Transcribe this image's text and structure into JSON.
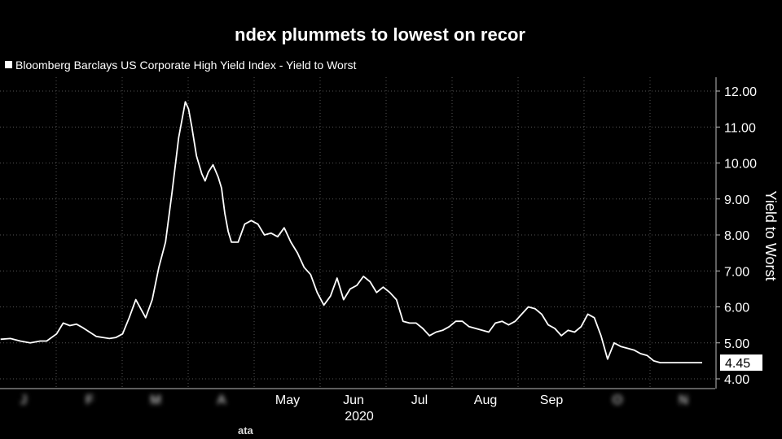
{
  "title": "ndex plummets to lowest on recor",
  "legend": "Bloomberg Barclays US Corporate High Yield Index - Yield to Worst",
  "source": "ata",
  "chart_data": {
    "type": "line",
    "title": "ndex plummets to lowest on recor",
    "xlabel": "2020",
    "ylabel": "Yield to Worst",
    "ylim": [
      4.0,
      12.0
    ],
    "y_ticks": [
      "4.00",
      "5.00",
      "6.00",
      "7.00",
      "8.00",
      "9.00",
      "10.00",
      "11.00",
      "12.00"
    ],
    "x_ticks": [
      {
        "month": 0,
        "label": "J"
      },
      {
        "month": 1,
        "label": "F"
      },
      {
        "month": 2,
        "label": "M"
      },
      {
        "month": 3,
        "label": "A"
      },
      {
        "month": 4,
        "label": "May"
      },
      {
        "month": 5,
        "label": "Jun"
      },
      {
        "month": 6,
        "label": "Jul"
      },
      {
        "month": 7,
        "label": "Aug"
      },
      {
        "month": 8,
        "label": "Sep"
      },
      {
        "month": 9,
        "label": "O"
      },
      {
        "month": 10,
        "label": "N"
      }
    ],
    "last_value_label": "4.45",
    "series": [
      {
        "name": "Bloomberg Barclays US Corporate High Yield Index - Yield to Worst",
        "color": "#ffffff",
        "x": [
          -0.35,
          -0.2,
          -0.05,
          0.1,
          0.25,
          0.35,
          0.5,
          0.6,
          0.7,
          0.8,
          0.9,
          1.0,
          1.1,
          1.2,
          1.3,
          1.4,
          1.5,
          1.6,
          1.7,
          1.85,
          1.95,
          2.05,
          2.15,
          2.25,
          2.35,
          2.45,
          2.5,
          2.55,
          2.62,
          2.7,
          2.75,
          2.8,
          2.87,
          2.95,
          3.0,
          3.05,
          3.1,
          3.15,
          3.25,
          3.35,
          3.45,
          3.55,
          3.65,
          3.75,
          3.85,
          3.95,
          4.05,
          4.15,
          4.25,
          4.35,
          4.45,
          4.55,
          4.65,
          4.75,
          4.85,
          4.95,
          5.05,
          5.15,
          5.25,
          5.35,
          5.45,
          5.55,
          5.65,
          5.75,
          5.85,
          5.95,
          6.05,
          6.15,
          6.25,
          6.35,
          6.45,
          6.55,
          6.65,
          6.75,
          6.85,
          6.95,
          7.05,
          7.15,
          7.25,
          7.35,
          7.45,
          7.55,
          7.65,
          7.75,
          7.85,
          7.95,
          8.05,
          8.15,
          8.25,
          8.35,
          8.45,
          8.55,
          8.65,
          8.75,
          8.85,
          8.95,
          9.05,
          9.15,
          9.25,
          9.35,
          9.45,
          9.55,
          9.65,
          9.75,
          9.85,
          9.95,
          10.05,
          10.15,
          10.25,
          10.35,
          10.45
        ],
        "values": [
          5.1,
          5.12,
          5.05,
          5.0,
          5.05,
          5.05,
          5.25,
          5.55,
          5.48,
          5.52,
          5.42,
          5.3,
          5.18,
          5.15,
          5.12,
          5.15,
          5.25,
          5.7,
          6.2,
          5.7,
          6.2,
          7.1,
          7.8,
          9.2,
          10.7,
          11.7,
          11.5,
          11.0,
          10.2,
          9.7,
          9.5,
          9.75,
          9.95,
          9.6,
          9.3,
          8.6,
          8.1,
          7.8,
          7.8,
          8.3,
          8.4,
          8.3,
          8.0,
          8.05,
          7.95,
          8.2,
          7.8,
          7.5,
          7.1,
          6.9,
          6.4,
          6.05,
          6.3,
          6.8,
          6.2,
          6.5,
          6.6,
          6.85,
          6.7,
          6.4,
          6.55,
          6.4,
          6.2,
          5.6,
          5.55,
          5.55,
          5.4,
          5.2,
          5.3,
          5.35,
          5.45,
          5.6,
          5.6,
          5.45,
          5.4,
          5.35,
          5.3,
          5.55,
          5.6,
          5.5,
          5.6,
          5.8,
          6.0,
          5.95,
          5.8,
          5.5,
          5.4,
          5.2,
          5.35,
          5.3,
          5.45,
          5.8,
          5.7,
          5.2,
          4.55,
          5.0,
          4.9,
          4.85,
          4.8,
          4.7,
          4.65,
          4.5,
          4.45,
          4.45,
          4.45,
          4.45,
          4.45,
          4.45,
          4.45,
          4.45,
          4.45
        ]
      }
    ]
  }
}
